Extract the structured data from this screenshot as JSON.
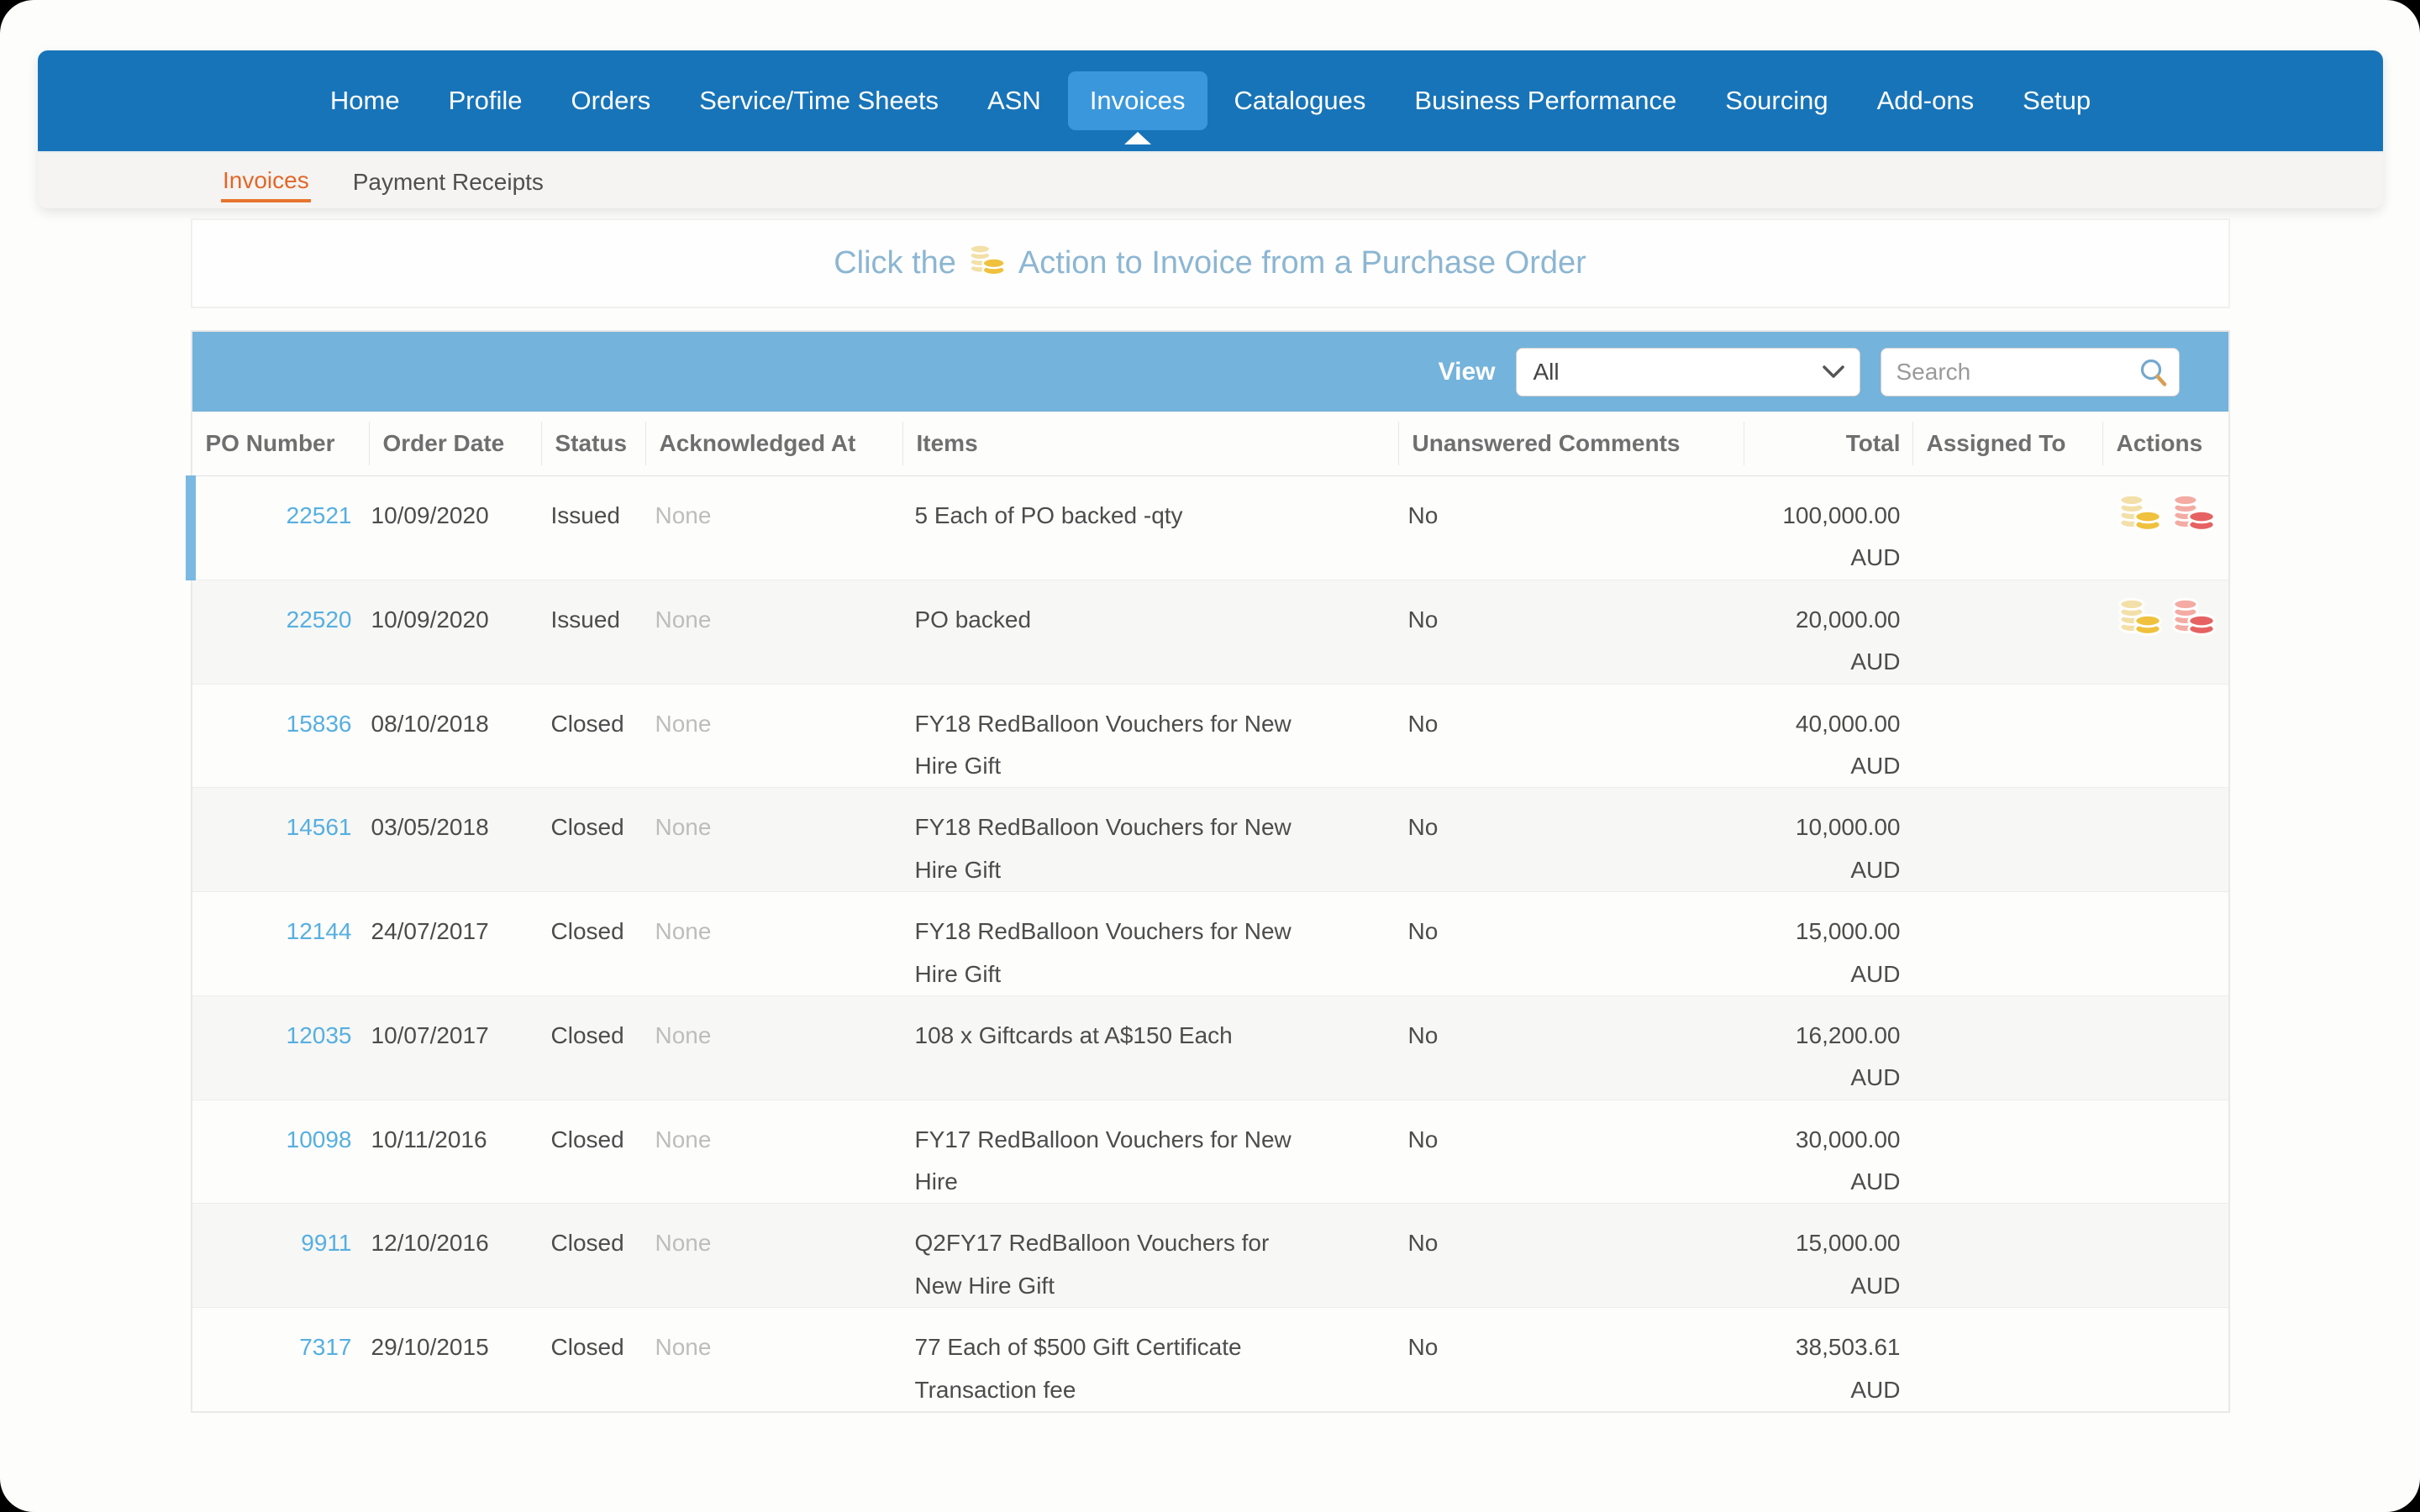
{
  "nav": {
    "items": [
      {
        "label": "Home",
        "active": false
      },
      {
        "label": "Profile",
        "active": false
      },
      {
        "label": "Orders",
        "active": false
      },
      {
        "label": "Service/Time Sheets",
        "active": false
      },
      {
        "label": "ASN",
        "active": false
      },
      {
        "label": "Invoices",
        "active": true
      },
      {
        "label": "Catalogues",
        "active": false
      },
      {
        "label": "Business Performance",
        "active": false
      },
      {
        "label": "Sourcing",
        "active": false
      },
      {
        "label": "Add-ons",
        "active": false
      },
      {
        "label": "Setup",
        "active": false
      }
    ]
  },
  "subnav": {
    "items": [
      {
        "label": "Invoices",
        "active": true
      },
      {
        "label": "Payment Receipts",
        "active": false
      }
    ]
  },
  "banner": {
    "prefix": "Click the",
    "icon": "gold-coins-icon",
    "suffix": "Action to Invoice from a Purchase Order"
  },
  "toolbar": {
    "view_label": "View",
    "view_value": "All",
    "search_placeholder": "Search"
  },
  "table": {
    "columns": [
      "PO Number",
      "Order Date",
      "Status",
      "Acknowledged At",
      "Items",
      "Unanswered Comments",
      "Total",
      "Assigned To",
      "Actions"
    ],
    "rows": [
      {
        "po": "22521",
        "order_date": "10/09/2020",
        "status": "Issued",
        "acknowledged_at": "None",
        "items": "5 Each of PO backed -qty",
        "unanswered_comments": "No",
        "total": "100,000.00",
        "currency": "AUD",
        "assigned_to": "",
        "actions": [
          "create-invoice",
          "create-credit-note"
        ],
        "selected": true
      },
      {
        "po": "22520",
        "order_date": "10/09/2020",
        "status": "Issued",
        "acknowledged_at": "None",
        "items": "PO backed",
        "unanswered_comments": "No",
        "total": "20,000.00",
        "currency": "AUD",
        "assigned_to": "",
        "actions": [
          "create-invoice",
          "create-credit-note"
        ],
        "selected": false
      },
      {
        "po": "15836",
        "order_date": "08/10/2018",
        "status": "Closed",
        "acknowledged_at": "None",
        "items": "FY18 RedBalloon Vouchers for New\nHire Gift",
        "unanswered_comments": "No",
        "total": "40,000.00",
        "currency": "AUD",
        "assigned_to": "",
        "actions": [],
        "selected": false
      },
      {
        "po": "14561",
        "order_date": "03/05/2018",
        "status": "Closed",
        "acknowledged_at": "None",
        "items": "FY18 RedBalloon Vouchers for New\nHire Gift",
        "unanswered_comments": "No",
        "total": "10,000.00",
        "currency": "AUD",
        "assigned_to": "",
        "actions": [],
        "selected": false
      },
      {
        "po": "12144",
        "order_date": "24/07/2017",
        "status": "Closed",
        "acknowledged_at": "None",
        "items": "FY18 RedBalloon Vouchers for New\nHire Gift",
        "unanswered_comments": "No",
        "total": "15,000.00",
        "currency": "AUD",
        "assigned_to": "",
        "actions": [],
        "selected": false
      },
      {
        "po": "12035",
        "order_date": "10/07/2017",
        "status": "Closed",
        "acknowledged_at": "None",
        "items": "108 x Giftcards at A$150 Each",
        "unanswered_comments": "No",
        "total": "16,200.00",
        "currency": "AUD",
        "assigned_to": "",
        "actions": [],
        "selected": false
      },
      {
        "po": "10098",
        "order_date": "10/11/2016",
        "status": "Closed",
        "acknowledged_at": "None",
        "items": "FY17 RedBalloon Vouchers for New\nHire",
        "unanswered_comments": "No",
        "total": "30,000.00",
        "currency": "AUD",
        "assigned_to": "",
        "actions": [],
        "selected": false
      },
      {
        "po": "9911",
        "order_date": "12/10/2016",
        "status": "Closed",
        "acknowledged_at": "None",
        "items": "Q2FY17 RedBalloon Vouchers for\nNew Hire Gift",
        "unanswered_comments": "No",
        "total": "15,000.00",
        "currency": "AUD",
        "assigned_to": "",
        "actions": [],
        "selected": false
      },
      {
        "po": "7317",
        "order_date": "29/10/2015",
        "status": "Closed",
        "acknowledged_at": "None",
        "items": "77 Each of $500 Gift Certificate\nTransaction fee",
        "unanswered_comments": "No",
        "total": "38,503.61",
        "currency": "AUD",
        "assigned_to": "",
        "actions": [],
        "selected": false
      }
    ]
  },
  "colors": {
    "nav_blue": "#1874B8",
    "nav_active_blue": "#3A97DB",
    "subnav_active_orange": "#E2672A",
    "toolbar_blue": "#74B3DB",
    "link_blue": "#56AFE0",
    "selected_row_accent": "#7CB9E2",
    "banner_text_blue": "#8CB6D2",
    "coin_gold_pale": "#F3E0A9",
    "coin_gold": "#EFC13D",
    "coin_red_pale": "#F4ABA3",
    "coin_red": "#E66262"
  }
}
